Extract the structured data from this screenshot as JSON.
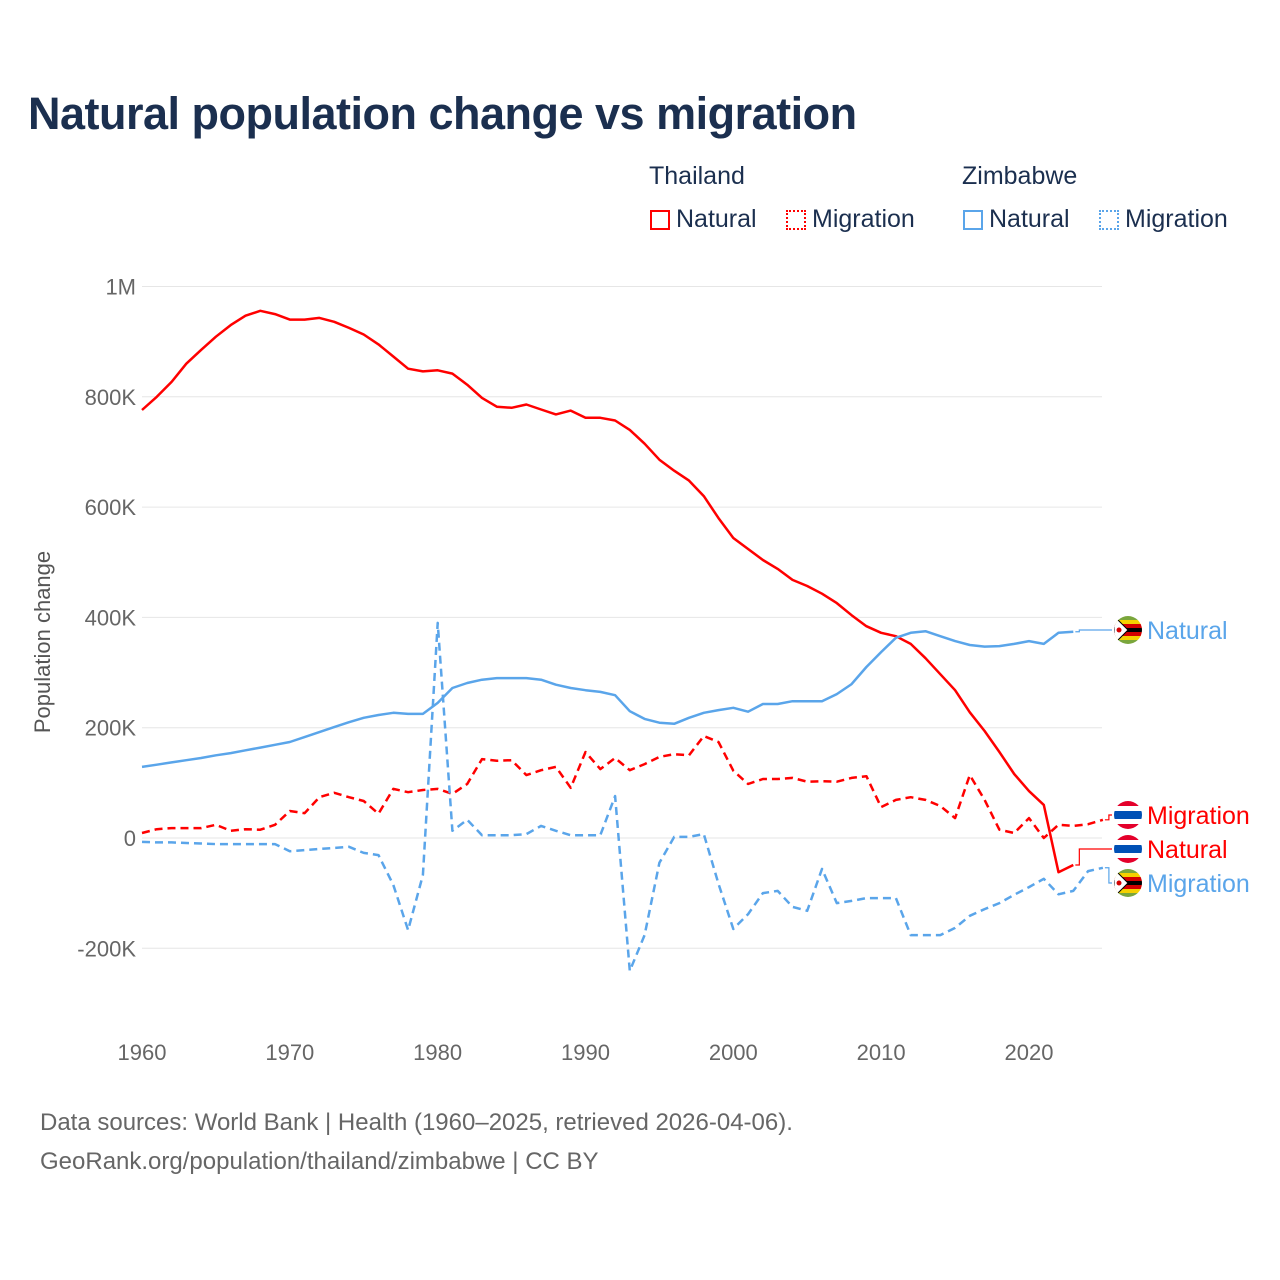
{
  "title": "Natural population change vs migration",
  "legend": {
    "groups": [
      {
        "name": "Thailand",
        "items": [
          "Natural",
          "Migration"
        ],
        "color": "#ff0000"
      },
      {
        "name": "Zimbabwe",
        "items": [
          "Natural",
          "Migration"
        ],
        "color": "#5aa5ea"
      }
    ]
  },
  "end_labels": [
    {
      "text": "Natural",
      "country": "Zimbabwe",
      "flag-icon": "zimbabwe-flag-icon"
    },
    {
      "text": "Migration",
      "country": "Thailand",
      "flag-icon": "thailand-flag-icon"
    },
    {
      "text": "Natural",
      "country": "Thailand",
      "flag-icon": "thailand-flag-icon"
    },
    {
      "text": "Migration",
      "country": "Zimbabwe",
      "flag-icon": "zimbabwe-flag-icon"
    }
  ],
  "footer": {
    "line1": "Data sources: World Bank | Health (1960–2025, retrieved 2026-04-06).",
    "line2": "GeoRank.org/population/thailand/zimbabwe | CC BY"
  },
  "chart_data": {
    "type": "line",
    "title": "Natural population change vs migration",
    "xlabel": "",
    "ylabel": "Population change",
    "xlim": [
      1960,
      2025
    ],
    "ylim": [
      -300000,
      1000000
    ],
    "x_ticks": [
      1960,
      1970,
      1980,
      1990,
      2000,
      2010,
      2020
    ],
    "x_tick_labels": [
      "1960",
      "1970",
      "1980",
      "1990",
      "2000",
      "2010",
      "2020"
    ],
    "y_ticks": [
      -200000,
      0,
      200000,
      400000,
      600000,
      800000,
      1000000
    ],
    "y_tick_labels": [
      "-200K",
      "0",
      "200K",
      "400K",
      "600K",
      "800K",
      "1M"
    ],
    "grid": true,
    "legend_position": "top-right",
    "start_year": 1960,
    "series": [
      {
        "name": "Thailand Natural",
        "color": "#ff0000",
        "dash": false,
        "values": [
          776000,
          800000,
          827000,
          860000,
          885000,
          909000,
          930000,
          947000,
          956000,
          950000,
          940000,
          940000,
          943000,
          936000,
          925000,
          913000,
          895000,
          873000,
          851000,
          846000,
          848000,
          842000,
          822000,
          798000,
          782000,
          780000,
          786000,
          777000,
          768000,
          775000,
          762000,
          762000,
          757000,
          740000,
          715000,
          686000,
          666000,
          648000,
          620000,
          580000,
          544000,
          524000,
          504000,
          488000,
          468000,
          457000,
          443000,
          426000,
          404000,
          384000,
          372000,
          366000,
          352000,
          326000,
          297000,
          268000,
          228000,
          194000,
          156000,
          116000,
          85000,
          60000,
          -62000,
          -49000
        ]
      },
      {
        "name": "Thailand Migration",
        "color": "#ff0000",
        "dash": true,
        "values": [
          9000,
          16000,
          18000,
          18000,
          18000,
          24000,
          13000,
          16000,
          15000,
          24000,
          49000,
          45000,
          74000,
          82000,
          74000,
          67000,
          44000,
          89000,
          83000,
          87000,
          89000,
          80000,
          98000,
          143000,
          140000,
          141000,
          114000,
          123000,
          129000,
          91000,
          156000,
          125000,
          145000,
          123000,
          134000,
          147000,
          152000,
          150000,
          185000,
          174000,
          122000,
          98000,
          107000,
          107000,
          109000,
          102000,
          103000,
          102000,
          109000,
          112000,
          56000,
          69000,
          74000,
          69000,
          58000,
          36000,
          114000,
          69000,
          15000,
          9000,
          36000,
          0,
          24000,
          22000,
          25000,
          33000
        ]
      },
      {
        "name": "Zimbabwe Natural",
        "color": "#5aa5ea",
        "dash": false,
        "values": [
          129000,
          133000,
          137000,
          141000,
          145000,
          150000,
          154000,
          159000,
          164000,
          169000,
          174000,
          183000,
          192000,
          201000,
          210000,
          218000,
          223000,
          227000,
          225000,
          225000,
          245000,
          272000,
          281000,
          287000,
          290000,
          290000,
          290000,
          287000,
          278000,
          272000,
          268000,
          265000,
          259000,
          230000,
          216000,
          209000,
          207000,
          218000,
          227000,
          232000,
          236000,
          229000,
          243000,
          243000,
          248000,
          248000,
          248000,
          261000,
          279000,
          310000,
          337000,
          363000,
          372000,
          375000,
          366000,
          357000,
          350000,
          347000,
          348000,
          352000,
          357000,
          352000,
          372000,
          374000
        ]
      },
      {
        "name": "Zimbabwe Migration",
        "color": "#5aa5ea",
        "dash": true,
        "values": [
          -7000,
          -8000,
          -8000,
          -9000,
          -10000,
          -11000,
          -11000,
          -11000,
          -11000,
          -11000,
          -24000,
          -22000,
          -20000,
          -18000,
          -16000,
          -27000,
          -31000,
          -85000,
          -167000,
          -67000,
          390000,
          13000,
          33000,
          5000,
          5000,
          5000,
          7000,
          22000,
          13000,
          5000,
          5000,
          5000,
          76000,
          -241000,
          -176000,
          -45000,
          2000,
          2000,
          7000,
          -83000,
          -165000,
          -138000,
          -100000,
          -96000,
          -125000,
          -132000,
          -56000,
          -118000,
          -114000,
          -109000,
          -109000,
          -109000,
          -176000,
          -176000,
          -176000,
          -163000,
          -141000,
          -129000,
          -118000,
          -103000,
          -89000,
          -74000,
          -102000,
          -96000,
          -60000,
          -54000
        ]
      }
    ]
  }
}
